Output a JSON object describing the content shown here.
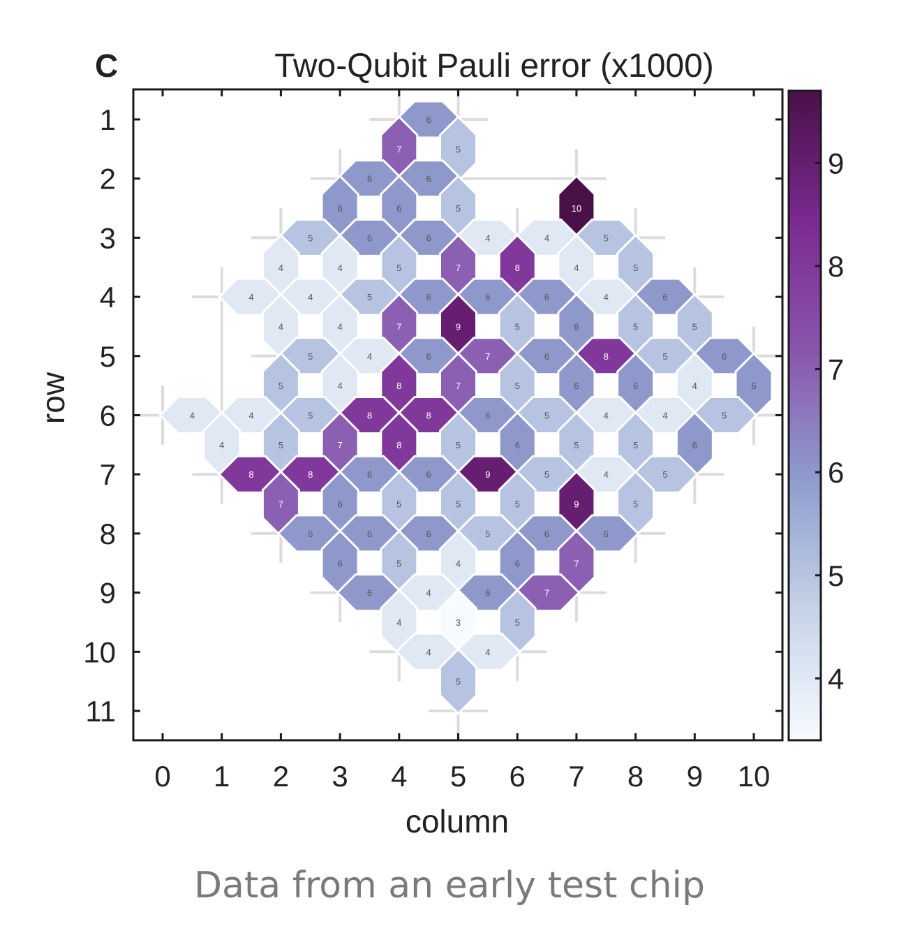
{
  "chart_data": {
    "type": "heatmap",
    "panel_letter": "C",
    "title": "Two-Qubit Pauli error (x1000)",
    "xlabel": "column",
    "ylabel": "row",
    "xlim": [
      -0.5,
      10.5
    ],
    "ylim": [
      0.5,
      11.5
    ],
    "x_ticks": [
      "0",
      "1",
      "2",
      "3",
      "4",
      "5",
      "6",
      "7",
      "8",
      "9",
      "10"
    ],
    "y_ticks": [
      "1",
      "2",
      "3",
      "4",
      "5",
      "6",
      "7",
      "8",
      "9",
      "10",
      "11"
    ],
    "colorbar": {
      "range": [
        3.4,
        9.7
      ],
      "ticks": [
        "4",
        "5",
        "6",
        "7",
        "8",
        "9"
      ],
      "colormap": [
        "#f7fbff",
        "#c6d3e8",
        "#8f9dcd",
        "#8a55ad",
        "#7a2a90",
        "#4a1048"
      ]
    },
    "cells": [
      {
        "x": 4.5,
        "y": 1,
        "v": 6,
        "o": "h"
      },
      {
        "x": 4,
        "y": 1.5,
        "v": 7,
        "o": "v"
      },
      {
        "x": 5,
        "y": 1.5,
        "v": 5,
        "o": "v"
      },
      {
        "x": 3.5,
        "y": 2,
        "v": 6,
        "o": "h"
      },
      {
        "x": 4.5,
        "y": 2,
        "v": 6,
        "o": "h"
      },
      {
        "x": 3,
        "y": 2.5,
        "v": 6,
        "o": "v"
      },
      {
        "x": 4,
        "y": 2.5,
        "v": 6,
        "o": "v"
      },
      {
        "x": 5,
        "y": 2.5,
        "v": 5,
        "o": "v"
      },
      {
        "x": 7,
        "y": 2.5,
        "v": 10,
        "o": "v"
      },
      {
        "x": 2.5,
        "y": 3,
        "v": 5,
        "o": "h"
      },
      {
        "x": 3.5,
        "y": 3,
        "v": 6,
        "o": "h"
      },
      {
        "x": 4.5,
        "y": 3,
        "v": 6,
        "o": "h"
      },
      {
        "x": 5.5,
        "y": 3,
        "v": 4,
        "o": "h"
      },
      {
        "x": 6.5,
        "y": 3,
        "v": 4,
        "o": "h"
      },
      {
        "x": 7.5,
        "y": 3,
        "v": 5,
        "o": "h"
      },
      {
        "x": 2,
        "y": 3.5,
        "v": 4,
        "o": "v"
      },
      {
        "x": 3,
        "y": 3.5,
        "v": 4,
        "o": "v"
      },
      {
        "x": 4,
        "y": 3.5,
        "v": 5,
        "o": "v"
      },
      {
        "x": 5,
        "y": 3.5,
        "v": 7,
        "o": "v"
      },
      {
        "x": 6,
        "y": 3.5,
        "v": 8,
        "o": "v"
      },
      {
        "x": 7,
        "y": 3.5,
        "v": 4,
        "o": "v"
      },
      {
        "x": 8,
        "y": 3.5,
        "v": 5,
        "o": "v"
      },
      {
        "x": 1.5,
        "y": 4,
        "v": 4,
        "o": "h"
      },
      {
        "x": 2.5,
        "y": 4,
        "v": 4,
        "o": "h"
      },
      {
        "x": 3.5,
        "y": 4,
        "v": 5,
        "o": "h"
      },
      {
        "x": 4.5,
        "y": 4,
        "v": 6,
        "o": "h"
      },
      {
        "x": 5.5,
        "y": 4,
        "v": 6,
        "o": "h"
      },
      {
        "x": 6.5,
        "y": 4,
        "v": 6,
        "o": "h"
      },
      {
        "x": 7.5,
        "y": 4,
        "v": 4,
        "o": "h"
      },
      {
        "x": 8.5,
        "y": 4,
        "v": 6,
        "o": "h"
      },
      {
        "x": 2,
        "y": 4.5,
        "v": 4,
        "o": "v"
      },
      {
        "x": 3,
        "y": 4.5,
        "v": 4,
        "o": "v"
      },
      {
        "x": 4,
        "y": 4.5,
        "v": 7,
        "o": "v"
      },
      {
        "x": 5,
        "y": 4.5,
        "v": 9,
        "o": "v"
      },
      {
        "x": 6,
        "y": 4.5,
        "v": 5,
        "o": "v"
      },
      {
        "x": 7,
        "y": 4.5,
        "v": 6,
        "o": "v"
      },
      {
        "x": 8,
        "y": 4.5,
        "v": 5,
        "o": "v"
      },
      {
        "x": 9,
        "y": 4.5,
        "v": 5,
        "o": "v"
      },
      {
        "x": 2.5,
        "y": 5,
        "v": 5,
        "o": "h"
      },
      {
        "x": 3.5,
        "y": 5,
        "v": 4,
        "o": "h"
      },
      {
        "x": 4.5,
        "y": 5,
        "v": 6,
        "o": "h"
      },
      {
        "x": 5.5,
        "y": 5,
        "v": 7,
        "o": "h"
      },
      {
        "x": 6.5,
        "y": 5,
        "v": 6,
        "o": "h"
      },
      {
        "x": 7.5,
        "y": 5,
        "v": 8,
        "o": "h"
      },
      {
        "x": 8.5,
        "y": 5,
        "v": 5,
        "o": "h"
      },
      {
        "x": 9.5,
        "y": 5,
        "v": 6,
        "o": "h"
      },
      {
        "x": 2,
        "y": 5.5,
        "v": 5,
        "o": "v"
      },
      {
        "x": 3,
        "y": 5.5,
        "v": 4,
        "o": "v"
      },
      {
        "x": 4,
        "y": 5.5,
        "v": 8,
        "o": "v"
      },
      {
        "x": 5,
        "y": 5.5,
        "v": 7,
        "o": "v"
      },
      {
        "x": 6,
        "y": 5.5,
        "v": 5,
        "o": "v"
      },
      {
        "x": 7,
        "y": 5.5,
        "v": 6,
        "o": "v"
      },
      {
        "x": 8,
        "y": 5.5,
        "v": 6,
        "o": "v"
      },
      {
        "x": 9,
        "y": 5.5,
        "v": 4,
        "o": "v"
      },
      {
        "x": 10,
        "y": 5.5,
        "v": 6,
        "o": "v"
      },
      {
        "x": 0.5,
        "y": 6,
        "v": 4,
        "o": "h"
      },
      {
        "x": 1.5,
        "y": 6,
        "v": 4,
        "o": "h"
      },
      {
        "x": 2.5,
        "y": 6,
        "v": 5,
        "o": "h"
      },
      {
        "x": 3.5,
        "y": 6,
        "v": 8,
        "o": "h"
      },
      {
        "x": 4.5,
        "y": 6,
        "v": 8,
        "o": "h"
      },
      {
        "x": 5.5,
        "y": 6,
        "v": 6,
        "o": "h"
      },
      {
        "x": 6.5,
        "y": 6,
        "v": 5,
        "o": "h"
      },
      {
        "x": 7.5,
        "y": 6,
        "v": 4,
        "o": "h"
      },
      {
        "x": 8.5,
        "y": 6,
        "v": 4,
        "o": "h"
      },
      {
        "x": 9.5,
        "y": 6,
        "v": 5,
        "o": "h"
      },
      {
        "x": 1,
        "y": 6.5,
        "v": 4,
        "o": "v"
      },
      {
        "x": 2,
        "y": 6.5,
        "v": 5,
        "o": "v"
      },
      {
        "x": 3,
        "y": 6.5,
        "v": 7,
        "o": "v"
      },
      {
        "x": 4,
        "y": 6.5,
        "v": 8,
        "o": "v"
      },
      {
        "x": 5,
        "y": 6.5,
        "v": 5,
        "o": "v"
      },
      {
        "x": 6,
        "y": 6.5,
        "v": 6,
        "o": "v"
      },
      {
        "x": 7,
        "y": 6.5,
        "v": 5,
        "o": "v"
      },
      {
        "x": 8,
        "y": 6.5,
        "v": 5,
        "o": "v"
      },
      {
        "x": 9,
        "y": 6.5,
        "v": 6,
        "o": "v"
      },
      {
        "x": 1.5,
        "y": 7,
        "v": 8,
        "o": "h"
      },
      {
        "x": 2.5,
        "y": 7,
        "v": 8,
        "o": "h"
      },
      {
        "x": 3.5,
        "y": 7,
        "v": 6,
        "o": "h"
      },
      {
        "x": 4.5,
        "y": 7,
        "v": 6,
        "o": "h"
      },
      {
        "x": 5.5,
        "y": 7,
        "v": 9,
        "o": "h"
      },
      {
        "x": 6.5,
        "y": 7,
        "v": 5,
        "o": "h"
      },
      {
        "x": 7.5,
        "y": 7,
        "v": 4,
        "o": "h"
      },
      {
        "x": 8.5,
        "y": 7,
        "v": 5,
        "o": "h"
      },
      {
        "x": 2,
        "y": 7.5,
        "v": 7,
        "o": "v"
      },
      {
        "x": 3,
        "y": 7.5,
        "v": 6,
        "o": "v"
      },
      {
        "x": 4,
        "y": 7.5,
        "v": 5,
        "o": "v"
      },
      {
        "x": 5,
        "y": 7.5,
        "v": 5,
        "o": "v"
      },
      {
        "x": 6,
        "y": 7.5,
        "v": 5,
        "o": "v"
      },
      {
        "x": 7,
        "y": 7.5,
        "v": 9,
        "o": "v"
      },
      {
        "x": 8,
        "y": 7.5,
        "v": 5,
        "o": "v"
      },
      {
        "x": 2.5,
        "y": 8,
        "v": 6,
        "o": "h"
      },
      {
        "x": 3.5,
        "y": 8,
        "v": 6,
        "o": "h"
      },
      {
        "x": 4.5,
        "y": 8,
        "v": 6,
        "o": "h"
      },
      {
        "x": 5.5,
        "y": 8,
        "v": 5,
        "o": "h"
      },
      {
        "x": 6.5,
        "y": 8,
        "v": 6,
        "o": "h"
      },
      {
        "x": 7.5,
        "y": 8,
        "v": 6,
        "o": "h"
      },
      {
        "x": 3,
        "y": 8.5,
        "v": 6,
        "o": "v"
      },
      {
        "x": 4,
        "y": 8.5,
        "v": 5,
        "o": "v"
      },
      {
        "x": 5,
        "y": 8.5,
        "v": 4,
        "o": "v"
      },
      {
        "x": 6,
        "y": 8.5,
        "v": 6,
        "o": "v"
      },
      {
        "x": 7,
        "y": 8.5,
        "v": 7,
        "o": "v"
      },
      {
        "x": 3.5,
        "y": 9,
        "v": 6,
        "o": "h"
      },
      {
        "x": 4.5,
        "y": 9,
        "v": 4,
        "o": "h"
      },
      {
        "x": 5.5,
        "y": 9,
        "v": 6,
        "o": "h"
      },
      {
        "x": 6.5,
        "y": 9,
        "v": 7,
        "o": "h"
      },
      {
        "x": 4,
        "y": 9.5,
        "v": 4,
        "o": "v"
      },
      {
        "x": 5,
        "y": 9.5,
        "v": 3,
        "o": "v"
      },
      {
        "x": 6,
        "y": 9.5,
        "v": 5,
        "o": "v"
      },
      {
        "x": 4.5,
        "y": 10,
        "v": 4,
        "o": "h"
      },
      {
        "x": 5.5,
        "y": 10,
        "v": 4,
        "o": "h"
      },
      {
        "x": 5,
        "y": 10.5,
        "v": 5,
        "o": "v"
      }
    ]
  },
  "caption": "Data from an early test chip"
}
